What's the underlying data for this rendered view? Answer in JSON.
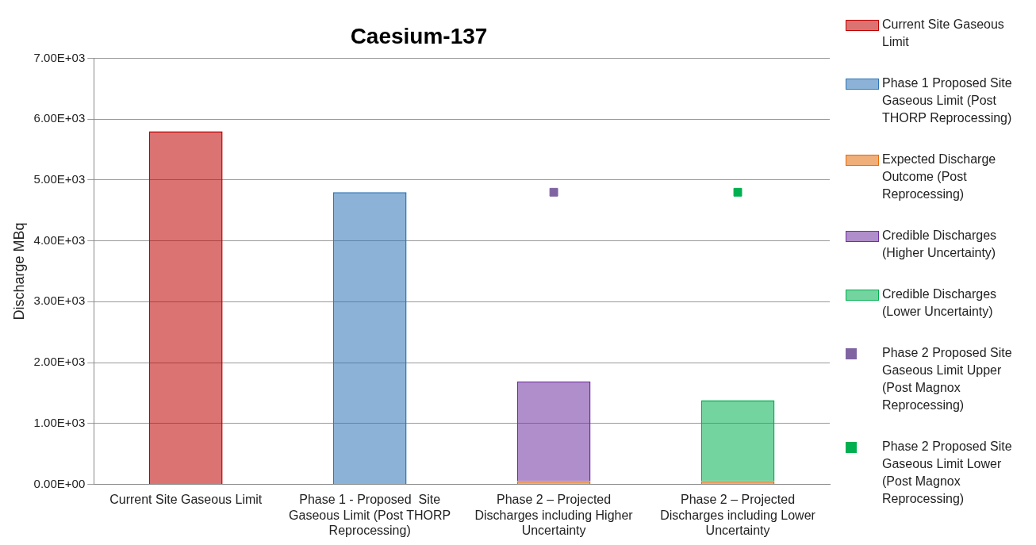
{
  "chart_data": {
    "type": "bar",
    "title": "Caesium-137",
    "ylabel": "Discharge MBq",
    "categories": [
      "Current Site Gaseous Limit",
      "Phase 1 - Proposed  Site Gaseous Limit (Post THORP Reprocessing)",
      "Phase 2 – Projected Discharges including Higher Uncertainty",
      "Phase 2 – Projected Discharges including Lower Uncertainty"
    ],
    "stacked": true,
    "series": [
      {
        "name": "Current Site Gaseous Limit",
        "color": "#c00000",
        "values": [
          5800,
          null,
          null,
          null
        ]
      },
      {
        "name": "Phase 1 Proposed Site Gaseous Limit (Post THORP Reprocessing)",
        "color": "#2e75b6",
        "values": [
          null,
          4800,
          null,
          null
        ]
      },
      {
        "name": "Expected Discharge Outcome (Post Reprocessing)",
        "color": "#e36c09",
        "values": [
          null,
          null,
          50,
          50
        ]
      },
      {
        "name": "Credible Discharges (Higher Uncertainty)",
        "color": "#7030a0",
        "values": [
          null,
          null,
          1640,
          null
        ]
      },
      {
        "name": "Credible Discharges (Lower Uncertainty)",
        "color": "#00b050",
        "values": [
          null,
          null,
          null,
          1330
        ]
      },
      {
        "name": "Phase 2 Proposed Site Gaseous Limit Upper (Post Magnox Reprocessing)",
        "color": "#8064a2",
        "type": "scatter",
        "marker": "square",
        "values": [
          null,
          null,
          4800,
          null
        ]
      },
      {
        "name": "Phase 2 Proposed Site Gaseous Limit Lower (Post Magnox Reprocessing)",
        "color": "#00b050",
        "type": "scatter",
        "marker": "square",
        "values": [
          null,
          null,
          null,
          4800
        ]
      }
    ],
    "ylim": [
      0,
      7000
    ],
    "yticks": [
      {
        "value": 0,
        "label": "0.00E+00"
      },
      {
        "value": 1000,
        "label": "1.00E+03"
      },
      {
        "value": 2000,
        "label": "2.00E+03"
      },
      {
        "value": 3000,
        "label": "3.00E+03"
      },
      {
        "value": 4000,
        "label": "4.00E+03"
      },
      {
        "value": 5000,
        "label": "5.00E+03"
      },
      {
        "value": 6000,
        "label": "6.00E+03"
      },
      {
        "value": 7000,
        "label": "7.00E+03"
      }
    ],
    "grid": "y",
    "legend": "right"
  }
}
